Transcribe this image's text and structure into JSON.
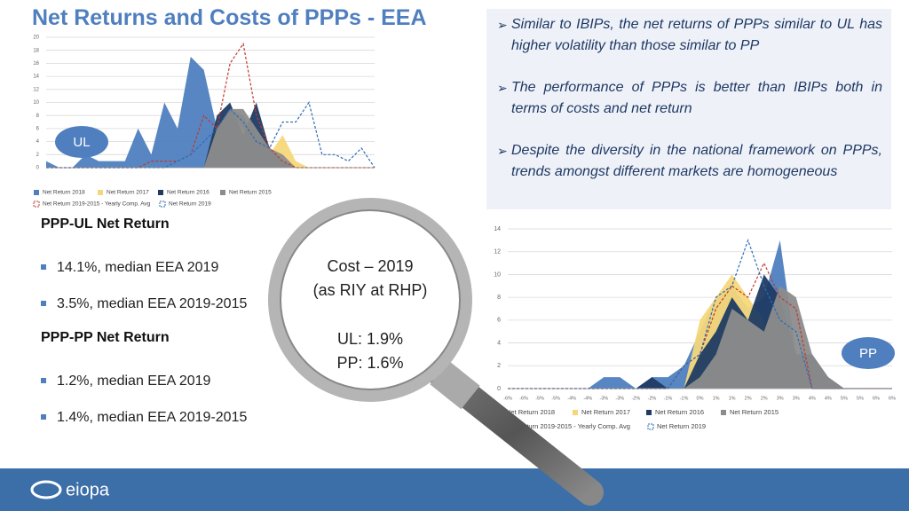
{
  "title": "Net Returns and Costs of PPPs - EEA",
  "chart_data": [
    {
      "type": "area",
      "label": "UL",
      "categories": [
        null,
        null,
        null,
        null,
        null,
        null,
        null,
        null,
        null,
        null,
        null,
        null,
        null,
        null,
        null,
        null,
        null,
        null,
        null,
        null,
        null,
        null,
        null,
        null,
        null,
        null
      ],
      "ylim": [
        0,
        20
      ],
      "yticks": [
        0,
        2,
        4,
        6,
        8,
        10,
        12,
        14,
        16,
        18,
        20
      ],
      "grid": true,
      "series": [
        {
          "name": "Net Return 2018",
          "color": "#4f7fbf",
          "kind": "area",
          "values": [
            1,
            0,
            0,
            2,
            1,
            1,
            1,
            6,
            2,
            10,
            6,
            17,
            15,
            6,
            9,
            8,
            4,
            2,
            1,
            0,
            0,
            0,
            0,
            0,
            0,
            0
          ]
        },
        {
          "name": "Net Return 2017",
          "color": "#f5d77a",
          "kind": "area",
          "values": [
            0,
            0,
            0,
            0,
            0,
            0,
            0,
            0,
            0,
            0,
            0,
            0,
            0,
            7,
            9,
            6,
            3,
            2,
            5,
            1,
            0,
            0,
            0,
            0,
            0,
            0
          ]
        },
        {
          "name": "Net Return 2016",
          "color": "#1f3b63",
          "kind": "area",
          "values": [
            0,
            0,
            0,
            0,
            0,
            0,
            0,
            0,
            0,
            0,
            0,
            0,
            0,
            8,
            10,
            5,
            10,
            3,
            1,
            0,
            0,
            0,
            0,
            0,
            0,
            0
          ]
        },
        {
          "name": "Net Return 2015",
          "color": "#8c8c8c",
          "kind": "area",
          "values": [
            0,
            0,
            0,
            0,
            0,
            0,
            0,
            0,
            0,
            0,
            0,
            0,
            0,
            6,
            9,
            9,
            6,
            3,
            2,
            0,
            0,
            0,
            0,
            0,
            0,
            0
          ]
        },
        {
          "name": "Net Return 2019-2015 - Yearly Comp. Avg",
          "color": "#c0392b",
          "kind": "line",
          "values": [
            0,
            0,
            0,
            0,
            0,
            0,
            0,
            0,
            1,
            1,
            1,
            2,
            8,
            6,
            16,
            19,
            8,
            3,
            1,
            0,
            0,
            0,
            0,
            0,
            0,
            0
          ]
        },
        {
          "name": "Net Return 2019",
          "color": "#2e6bb5",
          "kind": "line",
          "values": [
            0,
            0,
            0,
            0,
            0,
            0,
            0,
            0,
            0,
            0,
            1,
            2,
            4,
            6,
            9,
            7,
            4,
            3,
            7,
            7,
            10,
            2,
            2,
            1,
            3,
            0
          ]
        }
      ]
    },
    {
      "type": "area",
      "label": "PP",
      "categories": [
        "-6%",
        "-6%",
        "-5%",
        "-5%",
        "-4%",
        "-4%",
        "-3%",
        "-3%",
        "-2%",
        "-2%",
        "-1%",
        "-1%",
        "0%",
        "1%",
        "1%",
        "2%",
        "2%",
        "3%",
        "3%",
        "4%",
        "4%",
        "5%",
        "5%",
        "6%",
        "6%"
      ],
      "ylim": [
        0,
        14
      ],
      "yticks": [
        0,
        2,
        4,
        6,
        8,
        10,
        12,
        14
      ],
      "grid": true,
      "series": [
        {
          "name": "Net Return 2018",
          "color": "#4f7fbf",
          "kind": "area",
          "values": [
            0,
            0,
            0,
            0,
            0,
            0,
            1,
            1,
            0,
            1,
            1,
            2,
            5,
            8,
            9,
            7,
            8,
            13,
            3,
            3,
            1,
            0,
            0,
            0,
            0
          ]
        },
        {
          "name": "Net Return 2017",
          "color": "#f5d77a",
          "kind": "area",
          "values": [
            0,
            0,
            0,
            0,
            0,
            0,
            0,
            0,
            0,
            0,
            0,
            0,
            6,
            8,
            10,
            8,
            6,
            0,
            0,
            0,
            0,
            0,
            0,
            0,
            0
          ]
        },
        {
          "name": "Net Return 2016",
          "color": "#1f3b63",
          "kind": "area",
          "values": [
            0,
            0,
            0,
            0,
            0,
            0,
            0,
            0,
            0,
            1,
            0,
            0,
            3,
            5,
            8,
            6,
            10,
            8,
            3,
            3,
            1,
            0,
            0,
            0,
            0
          ]
        },
        {
          "name": "Net Return 2015",
          "color": "#8c8c8c",
          "kind": "area",
          "values": [
            0,
            0,
            0,
            0,
            0,
            0,
            0,
            0,
            0,
            0,
            0,
            0,
            1,
            3,
            7,
            6,
            5,
            9,
            8,
            3,
            1,
            0,
            0,
            0,
            0
          ]
        },
        {
          "name": "Net Return 2019-2015 - Yearly Comp. Avg",
          "color": "#c0392b",
          "kind": "line",
          "values": [
            0,
            0,
            0,
            0,
            0,
            0,
            0,
            0,
            0,
            0,
            0,
            2,
            3,
            7,
            9,
            8,
            11,
            8,
            7,
            0,
            0,
            0,
            0,
            0,
            0
          ]
        },
        {
          "name": "Net Return 2019",
          "color": "#2e6bb5",
          "kind": "line",
          "values": [
            0,
            0,
            0,
            0,
            0,
            0,
            0,
            0,
            0,
            0,
            0,
            2,
            3,
            8,
            9,
            13,
            9,
            6,
            5,
            0,
            0,
            0,
            0,
            0,
            0
          ]
        }
      ]
    }
  ],
  "notes": [
    "Similar to IBIPs, the net returns of PPPs similar to UL has higher volatility than those similar to PP",
    "The performance of PPPs is better than IBIPs both in terms of costs and net return",
    "Despite the diversity in the national framework on PPPs, trends amongst different markets are homogeneous"
  ],
  "summary": [
    {
      "heading": "PPP-UL Net Return",
      "items": [
        "14.1%, median EEA 2019",
        "3.5%, median EEA 2019-2015"
      ]
    },
    {
      "heading": "PPP-PP Net Return",
      "items": [
        "1.2%, median EEA 2019",
        "1.4%, median EEA 2019-2015"
      ]
    }
  ],
  "magnifier": [
    "Cost – 2019",
    "(as RIY at RHP)",
    "UL: 1.9%",
    "PP: 1.6%"
  ],
  "footer": {
    "logo": "eiopa"
  }
}
